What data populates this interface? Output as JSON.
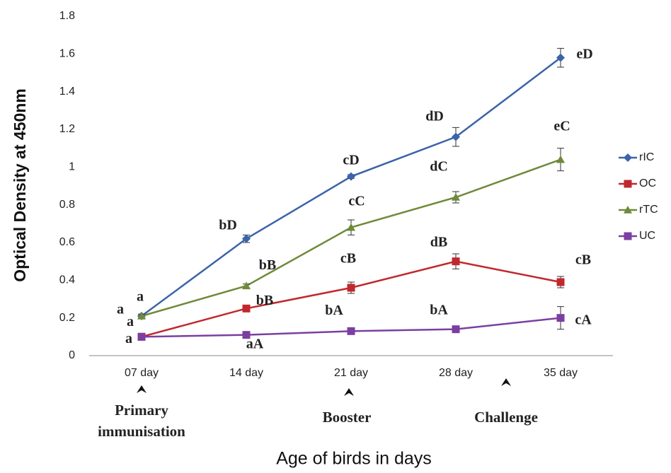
{
  "chart_data": {
    "type": "line",
    "x_label": "Age of birds in days",
    "y_label": "Optical Density at 450nm",
    "categories": [
      "07 day",
      "14 day",
      "21 day",
      "28 day",
      "35 day"
    ],
    "ylim": [
      0,
      1.8
    ],
    "yticks": [
      0,
      0.2,
      0.4,
      0.6,
      0.8,
      1,
      1.2,
      1.4,
      1.6,
      1.8
    ],
    "grid": false,
    "legend": "right",
    "series": [
      {
        "name": "rIC",
        "color": "#3b63a8",
        "marker": "diamond",
        "values": [
          0.21,
          0.62,
          0.95,
          1.16,
          1.58
        ],
        "errors": [
          0.01,
          0.02,
          0.01,
          0.05,
          0.05
        ],
        "point_labels": [
          "a",
          "bD",
          "cD",
          "dD",
          "eD"
        ]
      },
      {
        "name": "OC",
        "color": "#c0282d",
        "marker": "square",
        "values": [
          0.1,
          0.25,
          0.36,
          0.5,
          0.39
        ],
        "errors": [
          0.01,
          0.01,
          0.03,
          0.04,
          0.03
        ],
        "point_labels": [
          "a",
          "bB",
          "cB",
          "dB",
          "cB"
        ]
      },
      {
        "name": "rTC",
        "color": "#6f8a3a",
        "marker": "triangle",
        "values": [
          0.21,
          0.37,
          0.68,
          0.84,
          1.04
        ],
        "errors": [
          0.01,
          0.01,
          0.04,
          0.03,
          0.06
        ],
        "point_labels": [
          "a",
          "bB",
          "cC",
          "dC",
          "eC"
        ]
      },
      {
        "name": "UC",
        "color": "#7b3fa0",
        "marker": "square",
        "values": [
          0.1,
          0.11,
          0.13,
          0.14,
          0.2
        ],
        "errors": [
          0.01,
          0.01,
          0.01,
          0.01,
          0.06
        ],
        "point_labels": [
          "a",
          "aA",
          "bA",
          "bA",
          "cA"
        ]
      }
    ],
    "annotations": [
      "Primary immunisation",
      "Booster",
      "Challenge"
    ]
  }
}
